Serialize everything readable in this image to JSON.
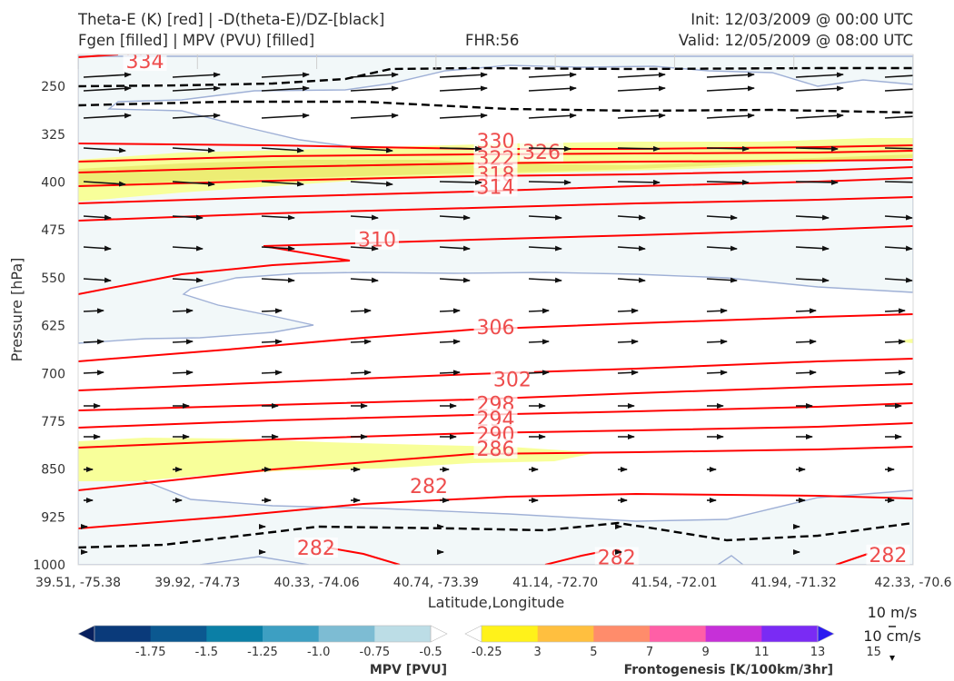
{
  "header": {
    "title_left_1": "Theta-E (K) [red] | -D(theta-E)/DZ-[black]",
    "title_left_2": "Fgen [filled] | MPV (PVU) [filled]",
    "title_center": "FHR:56",
    "title_right_1": "Init: 12/03/2009 @ 00:00 UTC",
    "title_right_2": "Valid: 12/05/2009 @ 08:00 UTC"
  },
  "vector_key": {
    "label1": "10 m/s",
    "label2": "10 cm/s"
  },
  "colors": {
    "theta_e": "#ff0000",
    "stability": "#000000",
    "mpv_outline": "#9fb0d6",
    "mpv_fill": "#f2f8f9",
    "fgen_fill": "#f8ff9a",
    "fgen_fill_dark": "#eded74",
    "contour_label": "#ee4d4d"
  },
  "chart_data": {
    "type": "cross-section",
    "xlabel": "Latitude,Longitude",
    "ylabel": "Pressure [hPa]",
    "ylim": [
      1000,
      200
    ],
    "x_ticks": [
      "39.51, -75.38",
      "39.92, -74.73",
      "40.33, -74.06",
      "40.74, -73.39",
      "41.14, -72.70",
      "41.54, -72.01",
      "41.94, -71.32",
      "42.33, -70.6"
    ],
    "y_ticks": [
      250,
      325,
      400,
      475,
      550,
      625,
      700,
      775,
      850,
      925,
      1000
    ],
    "theta_e_contour_labels": [
      {
        "label": "334",
        "x": 0.08,
        "p": 210
      },
      {
        "label": "330",
        "x": 0.5,
        "p": 335
      },
      {
        "label": "326",
        "x": 0.555,
        "p": 352
      },
      {
        "label": "322",
        "x": 0.5,
        "p": 362
      },
      {
        "label": "318",
        "x": 0.5,
        "p": 387
      },
      {
        "label": "314",
        "x": 0.5,
        "p": 407
      },
      {
        "label": "310",
        "x": 0.358,
        "p": 490
      },
      {
        "label": "306",
        "x": 0.5,
        "p": 627
      },
      {
        "label": "302",
        "x": 0.52,
        "p": 709
      },
      {
        "label": "298",
        "x": 0.5,
        "p": 747
      },
      {
        "label": "294",
        "x": 0.5,
        "p": 771
      },
      {
        "label": "290",
        "x": 0.5,
        "p": 795
      },
      {
        "label": "286",
        "x": 0.5,
        "p": 818
      },
      {
        "label": "282",
        "x": 0.42,
        "p": 876
      },
      {
        "label": "282",
        "x": 0.285,
        "p": 973
      },
      {
        "label": "282",
        "x": 0.645,
        "p": 988
      },
      {
        "label": "282",
        "x": 0.97,
        "p": 984
      }
    ],
    "mpv_colorbar": {
      "title": "MPV [PVU]",
      "levels": [
        "-1.75",
        "-1.5",
        "-1.25",
        "-1.0",
        "-0.75",
        "-0.5",
        "-0.25"
      ],
      "colors": [
        "#08205e",
        "#0a3a7a",
        "#0b5890",
        "#0b7fa6",
        "#3d9fc2",
        "#7dbcd3",
        "#bcdde6",
        "#ffffff"
      ]
    },
    "fgen_colorbar": {
      "title": "Frontogenesis [K/100km/3hr]",
      "levels": [
        "3",
        "5",
        "7",
        "9",
        "11",
        "13",
        "15"
      ],
      "colors": [
        "#ffffff",
        "#fff21a",
        "#ffbf3f",
        "#ff8c6b",
        "#ff5fa6",
        "#c630d8",
        "#7a2bf4",
        "#2b1bf0"
      ]
    }
  }
}
